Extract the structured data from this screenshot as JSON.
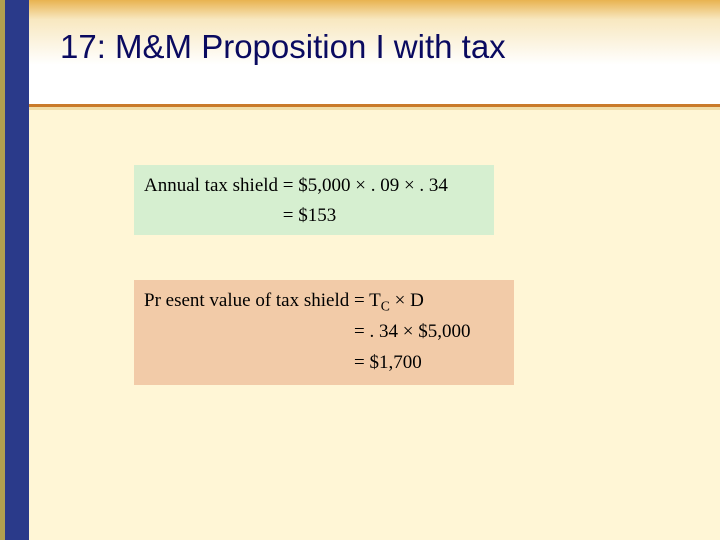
{
  "slide": {
    "title": "17: M&M Proposition I with tax",
    "background_color": "#fff6d6",
    "left_border_outer_color": "#b0a050",
    "left_border_inner_color": "#2a3a8a",
    "accent_line_color": "#c97a2a",
    "header_gradient_top": "#e8b350",
    "header_gradient_bottom": "#ffffff"
  },
  "formula1": {
    "background_color": "#d6efd0",
    "line1_lhs": "Annual tax shield",
    "line1_rhs": "$5,000 × . 09 × . 34",
    "line2_rhs": "$153"
  },
  "formula2": {
    "background_color": "#f2cba8",
    "line1_lhs": "Pr esent value of tax shield",
    "line1_rhs_html": "T<span class=\"sub\">C</span> × D",
    "line2_rhs": ". 34 × $5,000",
    "line3_rhs": "$1,700"
  }
}
